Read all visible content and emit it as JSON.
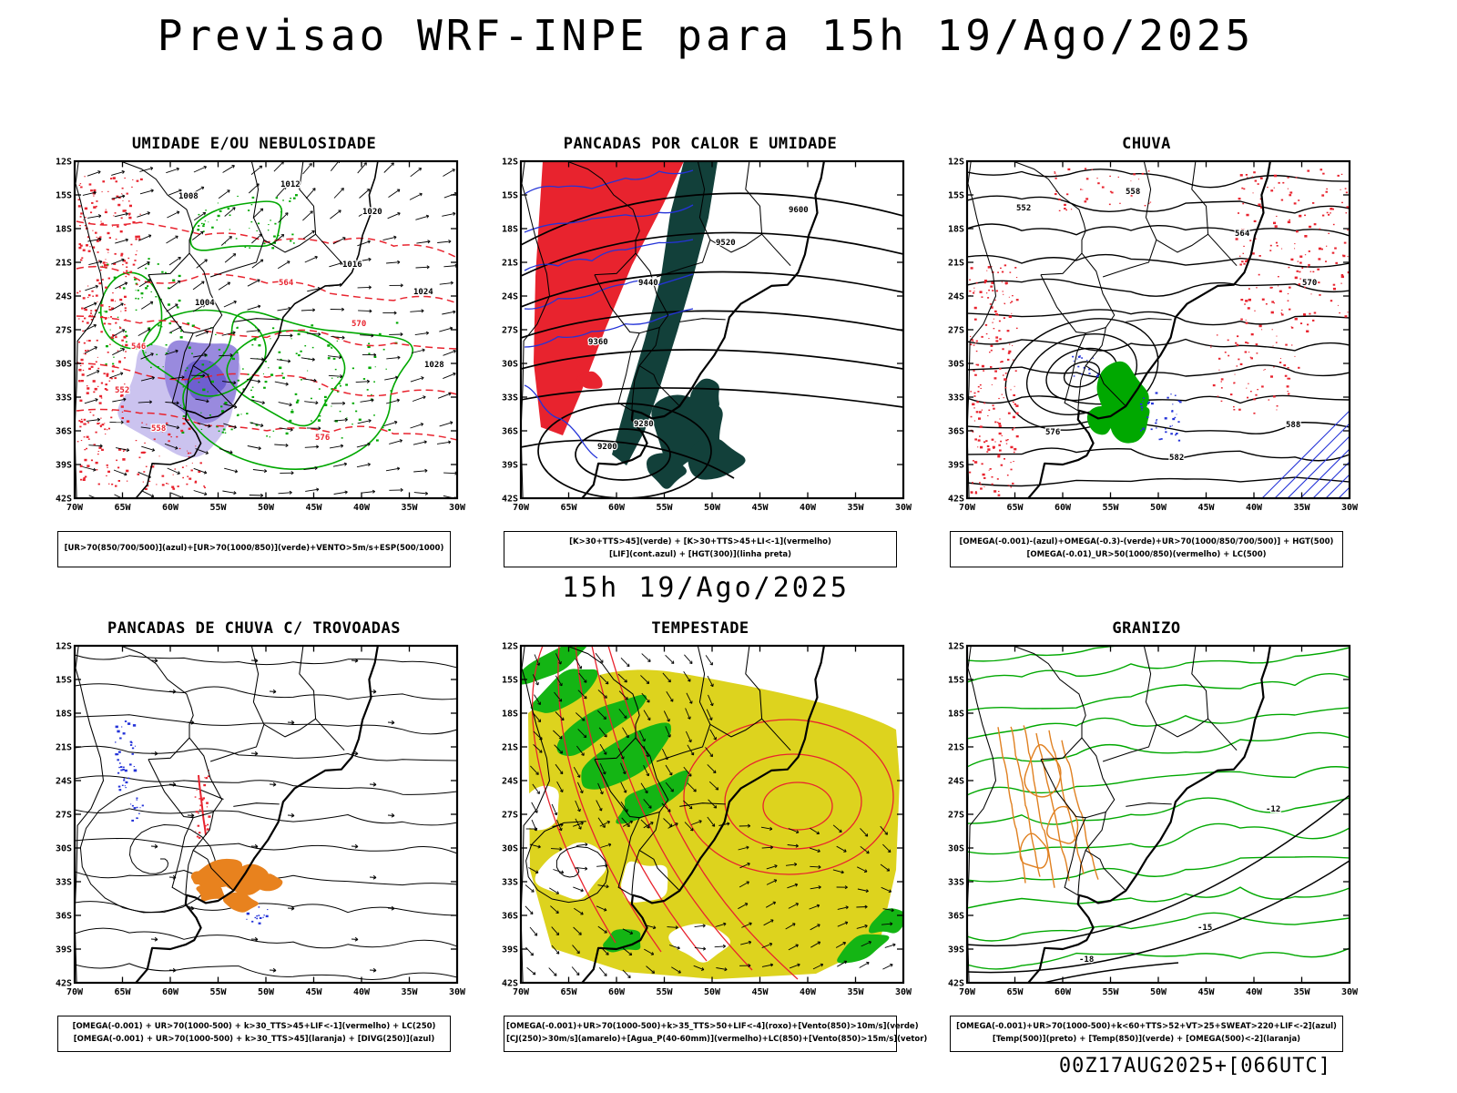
{
  "page": {
    "title": "Previsao WRF-INPE  para 15h 19/Ago/2025",
    "subtitle": "15h 19/Ago/2025",
    "footer": "00Z17AUG2025+[066UTC]"
  },
  "axes": {
    "lat_labels": [
      "12S",
      "15S",
      "18S",
      "21S",
      "24S",
      "27S",
      "30S",
      "33S",
      "36S",
      "39S",
      "42S"
    ],
    "lon_labels": [
      "70W",
      "65W",
      "60W",
      "55W",
      "50W",
      "45W",
      "40W",
      "35W",
      "30W"
    ]
  },
  "colors": {
    "red": "#e8232e",
    "green": "#00a800",
    "green_fill": "#14b514",
    "blue": "#2433d8",
    "purple": "#998ade",
    "purple_light": "#cbc3ef",
    "purple_dark": "#6e5fd0",
    "orange": "#e8821e",
    "orange_contour": "#e08020",
    "yellow": "#ddd31e",
    "dark_teal": "#12403a",
    "black": "#000000"
  },
  "panels": [
    {
      "id": "umidade",
      "title": "UMIDADE E/OU NEBULOSIDADE",
      "caption_lines": [
        "[UR>70(850/700/500)](azul)+[UR>70(1000/850)](verde)+VENTO>5m/s+ESP(500/1000)"
      ],
      "contour_labels": {
        "black": [
          "1004",
          "1008",
          "1012",
          "1016",
          "1020",
          "1024",
          "1028"
        ],
        "red": [
          "546",
          "552",
          "558",
          "564",
          "570",
          "576"
        ]
      }
    },
    {
      "id": "pancadas-calor",
      "title": "PANCADAS POR CALOR E UMIDADE",
      "caption_lines": [
        "[K>30+TTS>45](verde) + [K>30+TTS>45+LI<-1](vermelho)",
        "[LIF](cont.azul) + [HGT(300)](linha preta)"
      ],
      "contour_labels": {
        "black": [
          "9200",
          "9280",
          "9360",
          "9440",
          "9520",
          "9600"
        ]
      }
    },
    {
      "id": "chuva",
      "title": "CHUVA",
      "caption_lines": [
        "[OMEGA(-0.001)-(azul)+OMEGA(-0.3)-(verde)+UR>70(1000/850/700/500)] + HGT(500)",
        "[OMEGA(-0.01)_UR>50(1000/850)(vermelho) + LC(500)"
      ],
      "contour_labels": {
        "black": [
          "552",
          "558",
          "564",
          "570",
          "576",
          "582",
          "588"
        ]
      }
    },
    {
      "id": "trovoadas",
      "title": "PANCADAS DE CHUVA C/ TROVOADAS",
      "caption_lines": [
        "[OMEGA(-0.001) + UR>70(1000-500) + k>30_TTS>45+LIF<-1](vermelho) + LC(250)",
        "[OMEGA(-0.001) + UR>70(1000-500) + k>30_TTS>45](laranja) + [DIVG(250)](azul)"
      ],
      "contour_labels": {}
    },
    {
      "id": "tempestade",
      "title": "TEMPESTADE",
      "caption_lines": [
        "[OMEGA(-0.001)+UR>70(1000-500)+k>35_TTS>50+LIF<-4](roxo)+[Vento(850)>10m/s](verde)",
        "[CJ(250)>30m/s](amarelo)+[Agua_P(40-60mm)](vermelho)+LC(850)+[Vento(850)>15m/s](vetor)"
      ],
      "contour_labels": {}
    },
    {
      "id": "granizo",
      "title": "GRANIZO",
      "caption_lines": [
        "[OMEGA(-0.001)+UR>70(1000-500)+k<60+TTS>52+VT>25+SWEAT>220+LIF<-2](azul)",
        "[Temp(500)](preto) + [Temp(850)](verde) + [OMEGA(500)<-2](laranja)"
      ],
      "contour_labels": {
        "black": [
          "-12",
          "-15",
          "-18"
        ]
      }
    }
  ]
}
